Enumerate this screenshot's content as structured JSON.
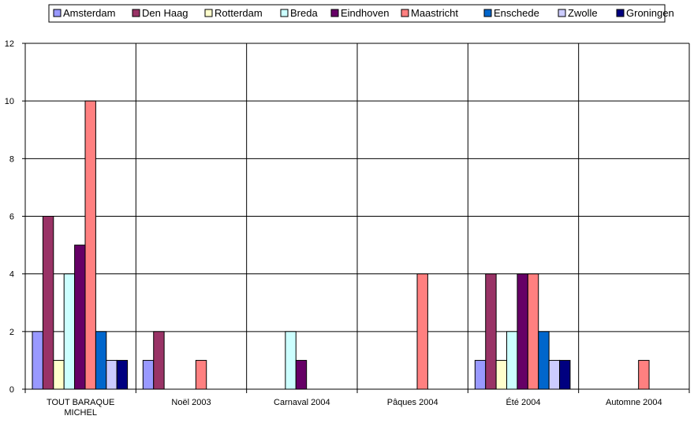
{
  "chart_data": {
    "type": "bar",
    "categories": [
      "TOUT BARAQUE\nMICHEL",
      "Noël 2003",
      "Carnaval 2004",
      "Pâques 2004",
      "Été 2004",
      "Automne 2004"
    ],
    "series": [
      {
        "name": "Amsterdam",
        "color": "#9999FF",
        "values": [
          2,
          1,
          0,
          0,
          1,
          0
        ]
      },
      {
        "name": "Den Haag",
        "color": "#993366",
        "values": [
          6,
          2,
          0,
          0,
          4,
          0
        ]
      },
      {
        "name": "Rotterdam",
        "color": "#FFFFCC",
        "values": [
          1,
          0,
          0,
          0,
          1,
          0
        ]
      },
      {
        "name": "Breda",
        "color": "#CCFFFF",
        "values": [
          4,
          0,
          2,
          0,
          2,
          0
        ]
      },
      {
        "name": "Eindhoven",
        "color": "#660066",
        "values": [
          5,
          0,
          1,
          0,
          4,
          0
        ]
      },
      {
        "name": "Maastricht",
        "color": "#FF8080",
        "values": [
          10,
          1,
          0,
          4,
          4,
          1
        ]
      },
      {
        "name": "Enschede",
        "color": "#0066CC",
        "values": [
          2,
          0,
          0,
          0,
          2,
          0
        ]
      },
      {
        "name": "Zwolle",
        "color": "#CCCCFF",
        "values": [
          1,
          0,
          0,
          0,
          1,
          0
        ]
      },
      {
        "name": "Groningen",
        "color": "#000080",
        "values": [
          1,
          0,
          0,
          0,
          1,
          0
        ]
      }
    ],
    "ylim": [
      0,
      12
    ],
    "yticks": [
      0,
      2,
      4,
      6,
      8,
      10,
      12
    ],
    "grid": true,
    "legend_position": "top"
  }
}
